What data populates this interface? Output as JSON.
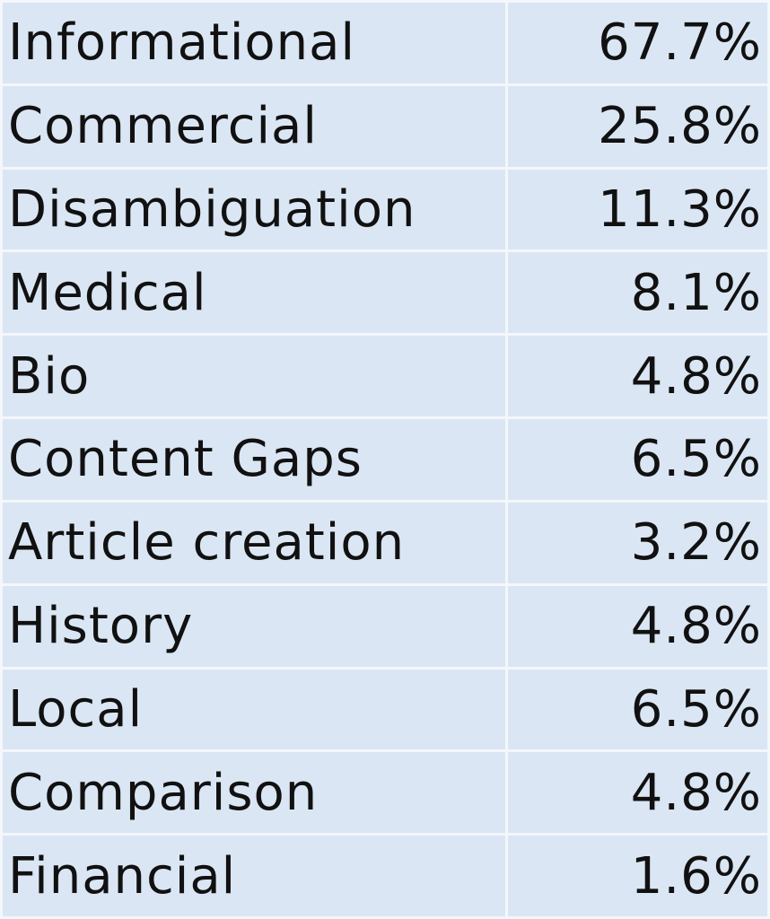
{
  "table": {
    "rows": [
      [
        "Informational",
        "67.7%"
      ],
      [
        "Commercial",
        "25.8%"
      ],
      [
        "Disambiguation",
        "11.3%"
      ],
      [
        "Medical",
        "8.1%"
      ],
      [
        "Bio",
        "4.8%"
      ],
      [
        "Content Gaps",
        "6.5%"
      ],
      [
        "Article creation",
        "3.2%"
      ],
      [
        "History",
        "4.8%"
      ],
      [
        "Local",
        "6.5%"
      ],
      [
        "Comparison",
        "4.8%"
      ],
      [
        "Financial",
        "1.6%"
      ]
    ]
  }
}
